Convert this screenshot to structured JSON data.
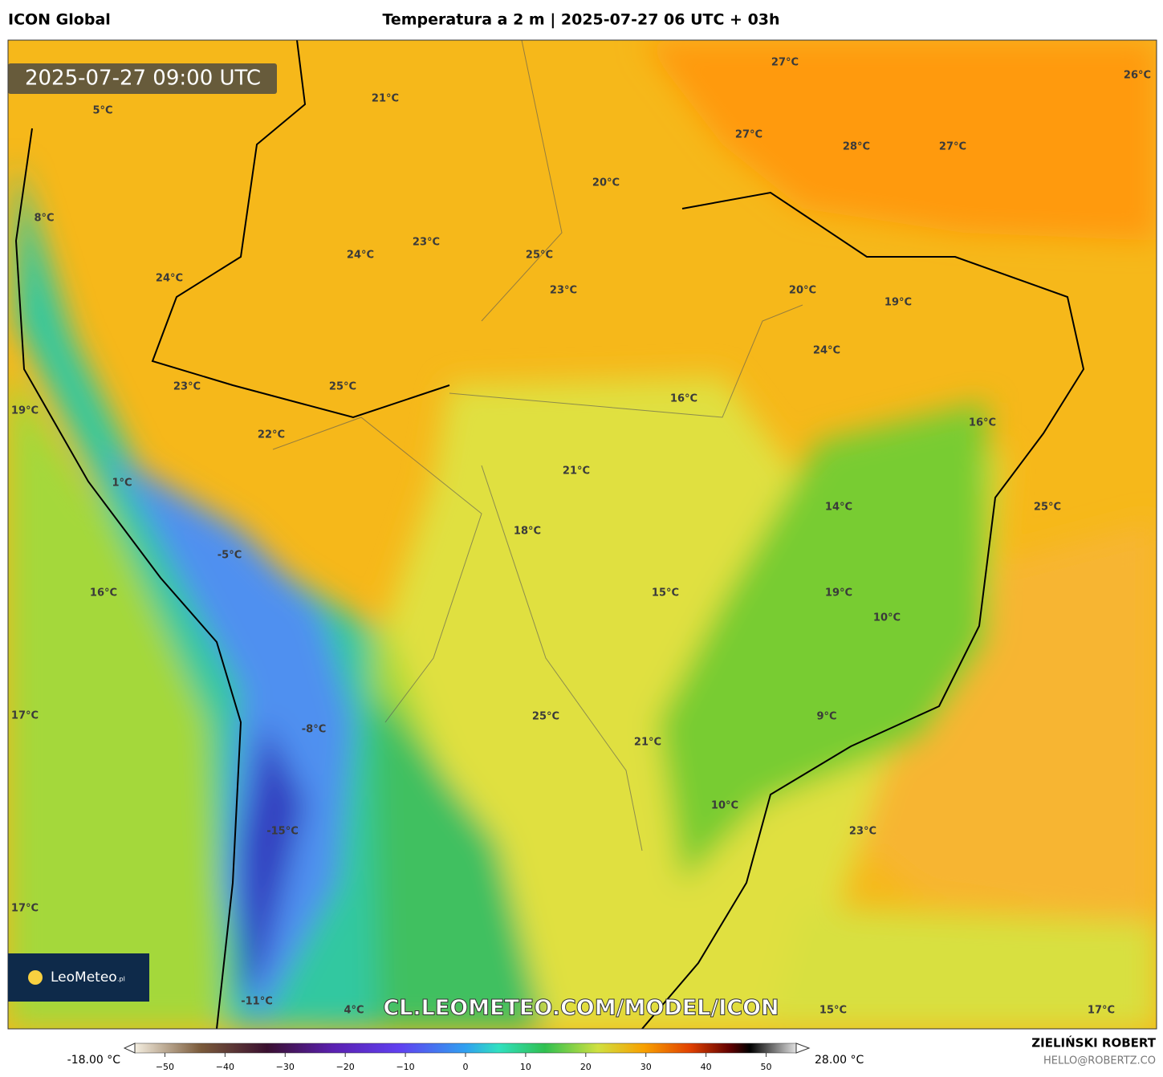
{
  "header": {
    "model": "ICON Global",
    "title": "Temperatura a 2 m | 2025-07-27 06 UTC + 03h"
  },
  "timestamp": "2025-07-27 09:00 UTC",
  "logo": {
    "name": "LeoMeteo",
    "suffix": ".pl"
  },
  "watermark": "CL.LEOMETEO.COM/MODEL/ICON",
  "map": {
    "labels": [
      "27°C",
      "26°C",
      "21°C",
      "5°C",
      "27°C",
      "28°C",
      "27°C",
      "20°C",
      "8°C",
      "23°C",
      "24°C",
      "25°C",
      "24°C",
      "23°C",
      "20°C",
      "19°C",
      "24°C",
      "23°C",
      "25°C",
      "16°C",
      "19°C",
      "16°C",
      "22°C",
      "21°C",
      "1°C",
      "14°C",
      "25°C",
      "18°C",
      "-5°C",
      "15°C",
      "19°C",
      "16°C",
      "10°C",
      "17°C",
      "25°C",
      "9°C",
      "-8°C",
      "21°C",
      "10°C",
      "-15°C",
      "23°C",
      "17°C",
      "-11°C",
      "4°C",
      "15°C",
      "17°C"
    ]
  },
  "colorbar": {
    "min_label": "-18.00 °C",
    "max_label": "28.00 °C",
    "lim": [
      -55,
      55
    ],
    "ticks": [
      {
        "value": -50,
        "label": "−50"
      },
      {
        "value": -40,
        "label": "−40"
      },
      {
        "value": -30,
        "label": "−30"
      },
      {
        "value": -20,
        "label": "−20"
      },
      {
        "value": -10,
        "label": "−10"
      },
      0,
      10,
      20,
      30,
      40,
      50
    ]
  },
  "footer": {
    "author": "ZIELIŃSKI ROBERT",
    "email": "HELLO@ROBERTZ.CO"
  }
}
